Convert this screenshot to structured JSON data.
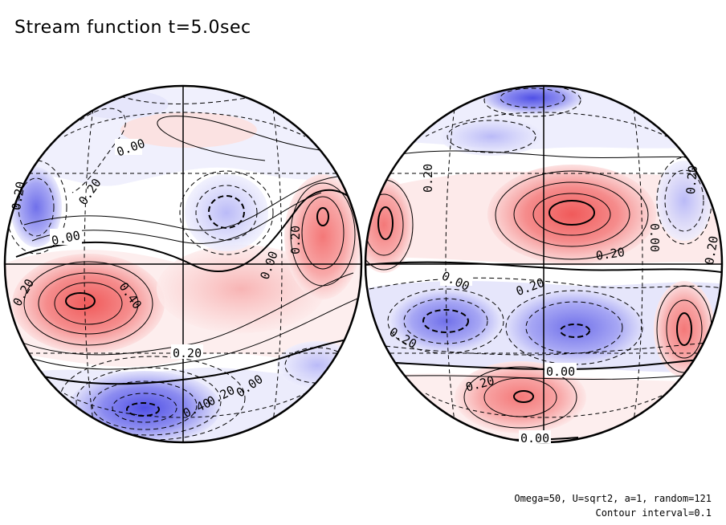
{
  "title": "Stream function t=5.0sec",
  "footer": {
    "params": "Omega=50, U=sqrt2, a=1, random=121",
    "contour_interval": "Contour interval=0.1"
  },
  "colors": {
    "positive": "#f06060",
    "negative": "#5a5ae6",
    "outline": "#000000"
  },
  "contour_labels": {
    "left": [
      "0.00",
      "0.20",
      "0.00",
      "0.20",
      "0.40",
      "0.20",
      "0.20",
      "0.00",
      "0.20",
      "0.00",
      "0.20",
      "0.40"
    ],
    "right": [
      "0.20",
      "0.00",
      "0.20",
      "0.20",
      "0.00",
      "0.20",
      "0.20",
      "0.00",
      "0.20",
      "0.00",
      "0.20"
    ]
  }
}
